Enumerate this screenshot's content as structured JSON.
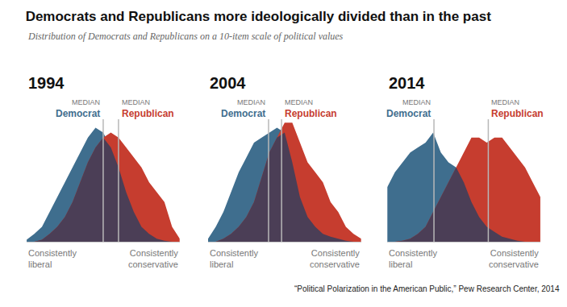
{
  "chart_data": {
    "type": "area",
    "title": "Democrats and Republicans more ideologically divided than in the past",
    "subtitle": "Distribution of Democrats and Republicans on a 10-item scale of political values",
    "source": "“Political Polarization in the American Public,” Pew Research Center, 2014",
    "median_label": "MEDIAN",
    "x_left_label": "Consistently\nliberal",
    "x_right_label": "Consistently\nconservative",
    "tick_labels": false,
    "grid": false,
    "xlim": [
      -10,
      10
    ],
    "ylim": [
      0,
      13
    ],
    "x": [
      -10,
      -9,
      -8,
      -7,
      -6,
      -5,
      -4,
      -3,
      -2,
      -1,
      0,
      1,
      2,
      3,
      4,
      5,
      6,
      7,
      8,
      9,
      10
    ],
    "panels": [
      {
        "title": "1994",
        "series": [
          {
            "name": "Democrat",
            "color": "#3f6e8e",
            "median": 0,
            "values": [
              0.2,
              0.8,
              1.5,
              3,
              4.5,
              6,
              7.5,
              9,
              10.5,
              11.5,
              11,
              9.5,
              7.5,
              5,
              3,
              1.5,
              0.8,
              0.3,
              0.1,
              0,
              0
            ]
          },
          {
            "name": "Republican",
            "color": "#c63d2f",
            "median": 2,
            "values": [
              0,
              0,
              0.2,
              0.8,
              1.5,
              2.5,
              4,
              6,
              8,
              9.5,
              10.5,
              11,
              10.5,
              9.5,
              8.5,
              7.5,
              6,
              5,
              4,
              1.5,
              0.3
            ]
          }
        ]
      },
      {
        "title": "2004",
        "series": [
          {
            "name": "Democrat",
            "color": "#3f6e8e",
            "median": -2.1,
            "values": [
              0.3,
              1.5,
              3,
              5,
              7,
              8.5,
              10,
              10.5,
              11,
              11.5,
              11,
              8,
              4.5,
              2.5,
              1.5,
              0.8,
              0.5,
              0.3,
              0.1,
              0,
              0
            ]
          },
          {
            "name": "Republican",
            "color": "#c63d2f",
            "median": -0.4,
            "values": [
              0,
              0,
              0.3,
              0.8,
              1.5,
              2.5,
              4,
              6.5,
              9,
              10.5,
              12,
              12,
              10,
              8,
              7,
              6,
              4,
              3,
              1.5,
              0.8,
              0.3
            ]
          }
        ]
      },
      {
        "title": "2014",
        "series": [
          {
            "name": "Democrat",
            "color": "#3f6e8e",
            "median": -3.9,
            "values": [
              5.5,
              7,
              8,
              9,
              9.5,
              10,
              11,
              9,
              8,
              7.5,
              6,
              4,
              2.5,
              1.5,
              1,
              0.5,
              0.3,
              0.1,
              0,
              0,
              0
            ]
          },
          {
            "name": "Republican",
            "color": "#c63d2f",
            "median": 3.2,
            "values": [
              0,
              0,
              0.1,
              0.3,
              0.8,
              1.5,
              3,
              4.5,
              6,
              7.5,
              9,
              10.5,
              10.5,
              10,
              10.5,
              10.5,
              9.5,
              8.5,
              7.5,
              6,
              4.5
            ]
          }
        ]
      }
    ]
  }
}
